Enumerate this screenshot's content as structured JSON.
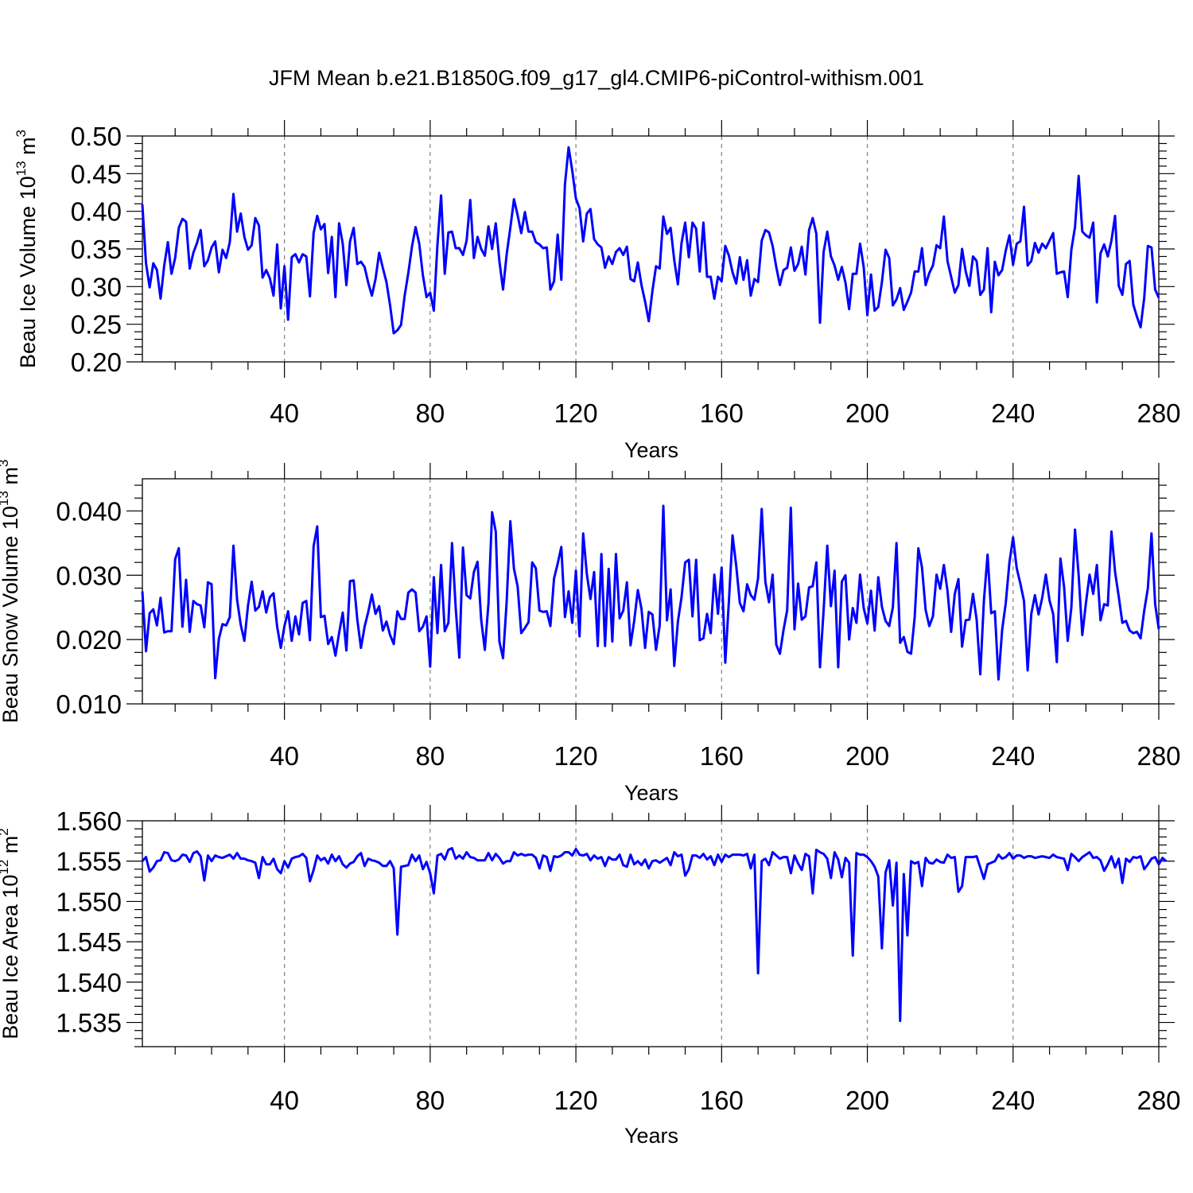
{
  "title": "JFM Mean b.e21.B1850G.f09_g17_gl4.CMIP6-piControl-withism.001",
  "series_color": "#0000ff",
  "chart_data": [
    {
      "type": "line",
      "xlabel": "Years",
      "ylabel": {
        "text": "Beau Ice Volume 10",
        "exp": "13",
        "unit_text": " m",
        "unit_exp": "3"
      },
      "xlim": [
        1,
        280
      ],
      "ylim": [
        0.2,
        0.5
      ],
      "xticks": [
        40,
        80,
        120,
        160,
        200,
        240,
        280
      ],
      "xtick_labels": [
        "40",
        "80",
        "120",
        "160",
        "200",
        "240",
        "280"
      ],
      "yticks": [
        0.2,
        0.25,
        0.3,
        0.35,
        0.4,
        0.45,
        0.5
      ],
      "ytick_labels": [
        "0.20",
        "0.25",
        "0.30",
        "0.35",
        "0.40",
        "0.45",
        "0.50"
      ],
      "grid": "vertical-dashed",
      "x_start": 1,
      "values": [
        0.409,
        0.331,
        0.299,
        0.331,
        0.322,
        0.284,
        0.328,
        0.359,
        0.317,
        0.338,
        0.378,
        0.39,
        0.386,
        0.324,
        0.345,
        0.358,
        0.375,
        0.327,
        0.335,
        0.352,
        0.36,
        0.319,
        0.349,
        0.338,
        0.359,
        0.423,
        0.373,
        0.397,
        0.366,
        0.349,
        0.355,
        0.391,
        0.381,
        0.312,
        0.322,
        0.311,
        0.288,
        0.356,
        0.271,
        0.327,
        0.256,
        0.339,
        0.343,
        0.332,
        0.343,
        0.34,
        0.287,
        0.371,
        0.394,
        0.376,
        0.383,
        0.318,
        0.366,
        0.286,
        0.384,
        0.357,
        0.302,
        0.36,
        0.378,
        0.33,
        0.333,
        0.326,
        0.305,
        0.288,
        0.31,
        0.345,
        0.325,
        0.306,
        0.275,
        0.238,
        0.242,
        0.249,
        0.288,
        0.318,
        0.353,
        0.379,
        0.357,
        0.315,
        0.286,
        0.292,
        0.268,
        0.356,
        0.421,
        0.317,
        0.372,
        0.373,
        0.351,
        0.351,
        0.342,
        0.361,
        0.415,
        0.338,
        0.366,
        0.35,
        0.341,
        0.38,
        0.35,
        0.384,
        0.334,
        0.296,
        0.343,
        0.378,
        0.416,
        0.395,
        0.371,
        0.399,
        0.373,
        0.373,
        0.359,
        0.356,
        0.351,
        0.352,
        0.296,
        0.307,
        0.369,
        0.309,
        0.436,
        0.485,
        0.454,
        0.417,
        0.404,
        0.36,
        0.397,
        0.403,
        0.363,
        0.356,
        0.352,
        0.325,
        0.34,
        0.33,
        0.346,
        0.351,
        0.342,
        0.353,
        0.31,
        0.307,
        0.332,
        0.302,
        0.28,
        0.254,
        0.294,
        0.327,
        0.324,
        0.393,
        0.37,
        0.378,
        0.335,
        0.303,
        0.358,
        0.385,
        0.339,
        0.385,
        0.377,
        0.32,
        0.385,
        0.313,
        0.313,
        0.284,
        0.313,
        0.307,
        0.354,
        0.341,
        0.319,
        0.304,
        0.339,
        0.309,
        0.335,
        0.288,
        0.31,
        0.306,
        0.361,
        0.375,
        0.372,
        0.354,
        0.326,
        0.302,
        0.322,
        0.325,
        0.352,
        0.321,
        0.33,
        0.353,
        0.316,
        0.375,
        0.391,
        0.37,
        0.252,
        0.346,
        0.373,
        0.34,
        0.328,
        0.309,
        0.326,
        0.305,
        0.27,
        0.317,
        0.317,
        0.357,
        0.326,
        0.262,
        0.316,
        0.268,
        0.273,
        0.306,
        0.349,
        0.338,
        0.275,
        0.283,
        0.298,
        0.269,
        0.28,
        0.292,
        0.32,
        0.32,
        0.351,
        0.302,
        0.318,
        0.328,
        0.355,
        0.351,
        0.393,
        0.334,
        0.313,
        0.292,
        0.302,
        0.35,
        0.32,
        0.301,
        0.34,
        0.334,
        0.289,
        0.296,
        0.351,
        0.266,
        0.333,
        0.315,
        0.322,
        0.348,
        0.368,
        0.329,
        0.357,
        0.36,
        0.406,
        0.328,
        0.334,
        0.358,
        0.345,
        0.357,
        0.351,
        0.361,
        0.371,
        0.317,
        0.319,
        0.32,
        0.286,
        0.349,
        0.379,
        0.447,
        0.373,
        0.368,
        0.365,
        0.385,
        0.279,
        0.344,
        0.356,
        0.34,
        0.361,
        0.394,
        0.301,
        0.289,
        0.33,
        0.334,
        0.276,
        0.26,
        0.246,
        0.285,
        0.354,
        0.352,
        0.296,
        0.285
      ]
    },
    {
      "type": "line",
      "xlabel": "Years",
      "ylabel": {
        "text": "Beau Snow Volume 10",
        "exp": "13",
        "unit_text": " m",
        "unit_exp": "3"
      },
      "xlim": [
        1,
        280
      ],
      "ylim": [
        0.01,
        0.045
      ],
      "xticks": [
        40,
        80,
        120,
        160,
        200,
        240,
        280
      ],
      "xtick_labels": [
        "40",
        "80",
        "120",
        "160",
        "200",
        "240",
        "280"
      ],
      "yticks": [
        0.01,
        0.02,
        0.03,
        0.04
      ],
      "ytick_labels": [
        "0.010",
        "0.020",
        "0.030",
        "0.040"
      ],
      "grid": "vertical-dashed",
      "x_start": 1,
      "values": [
        0.0275,
        0.0182,
        0.0241,
        0.0247,
        0.0222,
        0.0265,
        0.0211,
        0.0213,
        0.0213,
        0.0325,
        0.0342,
        0.022,
        0.0293,
        0.0212,
        0.026,
        0.0255,
        0.0253,
        0.0219,
        0.0289,
        0.0286,
        0.014,
        0.0201,
        0.0224,
        0.0222,
        0.0235,
        0.0346,
        0.0262,
        0.0223,
        0.0198,
        0.0253,
        0.029,
        0.0245,
        0.0251,
        0.0275,
        0.0242,
        0.0266,
        0.0272,
        0.022,
        0.0187,
        0.0221,
        0.0244,
        0.0198,
        0.0236,
        0.0208,
        0.0257,
        0.026,
        0.0199,
        0.0345,
        0.0376,
        0.0235,
        0.0237,
        0.0193,
        0.0204,
        0.0175,
        0.021,
        0.0242,
        0.0183,
        0.0291,
        0.0292,
        0.0231,
        0.0187,
        0.022,
        0.0243,
        0.027,
        0.024,
        0.0252,
        0.0214,
        0.0228,
        0.0207,
        0.0193,
        0.0244,
        0.0232,
        0.0232,
        0.0273,
        0.0278,
        0.0273,
        0.0213,
        0.022,
        0.0236,
        0.0158,
        0.0297,
        0.021,
        0.0316,
        0.0213,
        0.0226,
        0.035,
        0.025,
        0.0172,
        0.0343,
        0.0269,
        0.0264,
        0.0305,
        0.0321,
        0.0231,
        0.0184,
        0.0256,
        0.0398,
        0.0368,
        0.0197,
        0.0171,
        0.0259,
        0.0384,
        0.031,
        0.0283,
        0.021,
        0.0218,
        0.0227,
        0.032,
        0.0311,
        0.0245,
        0.0243,
        0.0244,
        0.0221,
        0.0295,
        0.0318,
        0.0344,
        0.0235,
        0.0275,
        0.0226,
        0.0307,
        0.0205,
        0.0365,
        0.0302,
        0.0263,
        0.0305,
        0.019,
        0.0333,
        0.019,
        0.031,
        0.0197,
        0.0333,
        0.0233,
        0.0245,
        0.0289,
        0.0191,
        0.0229,
        0.0277,
        0.0248,
        0.0187,
        0.0243,
        0.0239,
        0.0184,
        0.0222,
        0.0408,
        0.023,
        0.0278,
        0.0159,
        0.0228,
        0.0266,
        0.032,
        0.0324,
        0.0236,
        0.0324,
        0.0199,
        0.0202,
        0.024,
        0.021,
        0.0301,
        0.024,
        0.0312,
        0.0164,
        0.026,
        0.0362,
        0.0315,
        0.0257,
        0.0244,
        0.0286,
        0.0269,
        0.0262,
        0.0295,
        0.0403,
        0.029,
        0.0258,
        0.0301,
        0.0192,
        0.0178,
        0.0215,
        0.0246,
        0.0405,
        0.0216,
        0.0287,
        0.0231,
        0.0236,
        0.0281,
        0.0283,
        0.032,
        0.0157,
        0.0246,
        0.0346,
        0.0252,
        0.0307,
        0.0157,
        0.029,
        0.03,
        0.02,
        0.0249,
        0.0226,
        0.0301,
        0.0249,
        0.0225,
        0.0276,
        0.0214,
        0.0297,
        0.0251,
        0.0229,
        0.0221,
        0.025,
        0.035,
        0.0195,
        0.0204,
        0.0181,
        0.0178,
        0.0235,
        0.0342,
        0.0312,
        0.0246,
        0.0221,
        0.0236,
        0.0301,
        0.0279,
        0.0316,
        0.0276,
        0.0212,
        0.0271,
        0.0294,
        0.0189,
        0.023,
        0.0231,
        0.0271,
        0.0231,
        0.0146,
        0.0261,
        0.0332,
        0.0241,
        0.0244,
        0.0138,
        0.0215,
        0.0257,
        0.032,
        0.0359,
        0.0311,
        0.0287,
        0.026,
        0.0152,
        0.024,
        0.0269,
        0.0239,
        0.0265,
        0.0301,
        0.0261,
        0.024,
        0.0165,
        0.0326,
        0.0282,
        0.0198,
        0.025,
        0.0371,
        0.03,
        0.0207,
        0.0257,
        0.0301,
        0.0271,
        0.0316,
        0.023,
        0.0255,
        0.0253,
        0.0368,
        0.0305,
        0.0267,
        0.0226,
        0.0229,
        0.0214,
        0.021,
        0.0212,
        0.0202,
        0.0245,
        0.028,
        0.0365,
        0.0255,
        0.0216
      ]
    },
    {
      "type": "line",
      "xlabel": "Years",
      "ylabel": {
        "text": "Beau Ice Area 10",
        "exp": "12",
        "unit_text": " m",
        "unit_exp": "2"
      },
      "xlim": [
        1,
        280
      ],
      "ylim": [
        1.532,
        1.56
      ],
      "xticks": [
        40,
        80,
        120,
        160,
        200,
        240,
        280
      ],
      "xtick_labels": [
        "40",
        "80",
        "120",
        "160",
        "200",
        "240",
        "280"
      ],
      "yticks": [
        1.535,
        1.54,
        1.545,
        1.55,
        1.555,
        1.56
      ],
      "ytick_labels": [
        "1.535",
        "1.540",
        "1.545",
        "1.550",
        "1.555",
        "1.560"
      ],
      "grid": "vertical-dashed",
      "x_start": 1,
      "values": [
        1.555,
        1.5555,
        1.5537,
        1.5542,
        1.555,
        1.5551,
        1.5561,
        1.556,
        1.5551,
        1.555,
        1.5552,
        1.5558,
        1.5557,
        1.5549,
        1.556,
        1.5562,
        1.5556,
        1.5526,
        1.5557,
        1.555,
        1.5557,
        1.5555,
        1.5554,
        1.5556,
        1.5558,
        1.5553,
        1.556,
        1.5553,
        1.5553,
        1.5551,
        1.555,
        1.5548,
        1.5529,
        1.5555,
        1.5546,
        1.5546,
        1.5553,
        1.554,
        1.5535,
        1.555,
        1.5542,
        1.5553,
        1.5555,
        1.5556,
        1.5559,
        1.5554,
        1.5525,
        1.5539,
        1.5557,
        1.5551,
        1.5554,
        1.5547,
        1.5558,
        1.555,
        1.5556,
        1.5546,
        1.5542,
        1.5547,
        1.5549,
        1.5556,
        1.556,
        1.5544,
        1.5553,
        1.5551,
        1.555,
        1.5548,
        1.5544,
        1.5544,
        1.555,
        1.5541,
        1.5459,
        1.5543,
        1.5544,
        1.5545,
        1.5558,
        1.555,
        1.5557,
        1.554,
        1.5549,
        1.5535,
        1.551,
        1.5557,
        1.5559,
        1.5552,
        1.5564,
        1.5566,
        1.5553,
        1.5557,
        1.5553,
        1.5561,
        1.5555,
        1.5554,
        1.5551,
        1.5551,
        1.5551,
        1.556,
        1.5551,
        1.5559,
        1.5554,
        1.5547,
        1.555,
        1.555,
        1.5561,
        1.5557,
        1.5559,
        1.5557,
        1.5558,
        1.5558,
        1.5554,
        1.5541,
        1.5557,
        1.5555,
        1.5538,
        1.5556,
        1.5555,
        1.5557,
        1.5561,
        1.5561,
        1.5557,
        1.5565,
        1.5558,
        1.5557,
        1.5559,
        1.5551,
        1.5557,
        1.5553,
        1.5555,
        1.5544,
        1.5555,
        1.5552,
        1.5552,
        1.5558,
        1.5545,
        1.5543,
        1.5558,
        1.5546,
        1.555,
        1.5545,
        1.5552,
        1.5541,
        1.555,
        1.5551,
        1.5548,
        1.5551,
        1.5554,
        1.5545,
        1.5561,
        1.5556,
        1.5558,
        1.5532,
        1.554,
        1.5557,
        1.5557,
        1.5554,
        1.5559,
        1.5552,
        1.5556,
        1.5545,
        1.5558,
        1.5549,
        1.5558,
        1.5555,
        1.5558,
        1.5558,
        1.5558,
        1.5557,
        1.5559,
        1.5541,
        1.5558,
        1.5411,
        1.555,
        1.5553,
        1.5545,
        1.5561,
        1.5557,
        1.5553,
        1.5555,
        1.5555,
        1.5535,
        1.5557,
        1.5547,
        1.5539,
        1.5559,
        1.5556,
        1.551,
        1.5564,
        1.5561,
        1.5559,
        1.5553,
        1.5529,
        1.5561,
        1.5552,
        1.553,
        1.5554,
        1.5548,
        1.5433,
        1.556,
        1.5558,
        1.5558,
        1.5555,
        1.555,
        1.5543,
        1.5531,
        1.5442,
        1.5536,
        1.5551,
        1.5495,
        1.5548,
        1.5352,
        1.5534,
        1.5458,
        1.555,
        1.5547,
        1.5549,
        1.5519,
        1.5554,
        1.5548,
        1.5547,
        1.5552,
        1.5549,
        1.5548,
        1.5558,
        1.5554,
        1.5555,
        1.5512,
        1.5519,
        1.5555,
        1.5555,
        1.5555,
        1.5556,
        1.5542,
        1.5528,
        1.5546,
        1.5548,
        1.555,
        1.5558,
        1.5553,
        1.5555,
        1.556,
        1.5553,
        1.5557,
        1.5557,
        1.5554,
        1.5556,
        1.5556,
        1.5554,
        1.5555,
        1.5556,
        1.5555,
        1.5554,
        1.5558,
        1.5555,
        1.5554,
        1.5553,
        1.5539,
        1.5559,
        1.5555,
        1.555,
        1.5555,
        1.5558,
        1.5561,
        1.5554,
        1.5555,
        1.5551,
        1.5538,
        1.5546,
        1.5556,
        1.5542,
        1.5553,
        1.5523,
        1.5553,
        1.5549,
        1.5555,
        1.5554,
        1.5556,
        1.554,
        1.5546,
        1.5553,
        1.5555,
        1.5546,
        1.5554,
        1.555
      ]
    }
  ]
}
